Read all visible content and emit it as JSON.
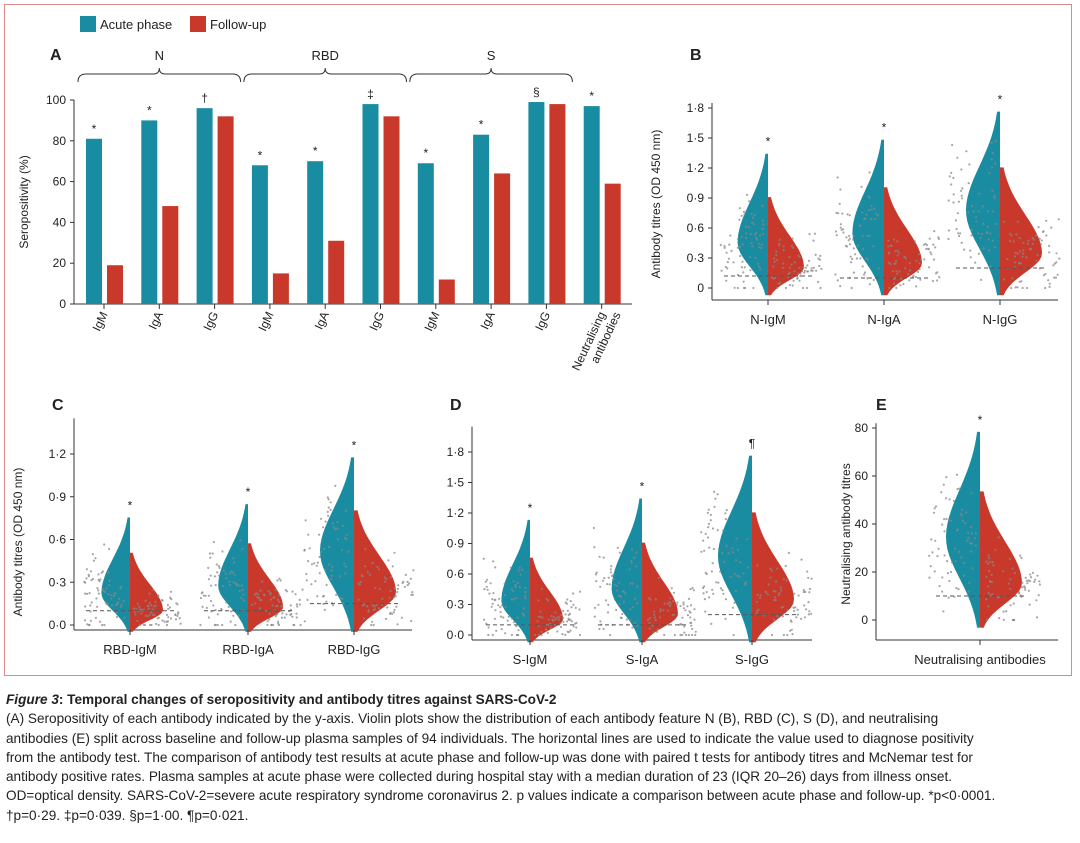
{
  "colors": {
    "acute": "#1a8ca1",
    "follow": "#c8392b",
    "frame": "#d98a8a"
  },
  "legend": [
    {
      "label": "Acute phase",
      "color": "#1a8ca1"
    },
    {
      "label": "Follow-up",
      "color": "#c8392b"
    }
  ],
  "caption": {
    "fig_label": "Figure 3",
    "title": ": Temporal changes of seropositivity and antibody titres against SARS-CoV-2",
    "lines": [
      "(A) Seropositivity of each antibody indicated by the y-axis. Violin plots show the distribution of each antibody feature N (B), RBD (C), S (D), and neutralising",
      "antibodies (E) split across baseline and follow-up plasma samples of 94 individuals. The horizontal lines are used to indicate the value used to diagnose positivity",
      "from the antibody test. The comparison of antibody test results at acute phase and follow-up was done with paired t tests for antibody titres and McNemar test for",
      "antibody positive rates. Plasma samples at acute phase were collected during hospital stay with a median duration of 23 (IQR 20–26) days from illness onset.",
      "OD=optical density. SARS-CoV-2=severe acute respiratory syndrome coronavirus 2. p values indicate a comparison between acute phase and follow-up. *p<0·0001.",
      "†p=0·29. ‡p=0·039. §p=1·00. ¶p=0·021."
    ]
  },
  "chart_data": [
    {
      "panel": "A",
      "type": "bar",
      "ylabel": "Seropositivity (%)",
      "ylim": [
        0,
        100
      ],
      "yticks": [
        "0",
        "20",
        "40",
        "60",
        "80",
        "100"
      ],
      "groups": [
        {
          "label": "N",
          "span": [
            0,
            2
          ]
        },
        {
          "label": "RBD",
          "span": [
            3,
            5
          ]
        },
        {
          "label": "S",
          "span": [
            6,
            8
          ]
        }
      ],
      "categories": [
        "IgM",
        "IgA",
        "IgG",
        "IgM",
        "IgA",
        "IgG",
        "IgM",
        "IgA",
        "IgG",
        "Neutralising antibodies"
      ],
      "series": [
        {
          "name": "Acute phase",
          "values": [
            81,
            90,
            96,
            68,
            70,
            98,
            69,
            83,
            99,
            97
          ]
        },
        {
          "name": "Follow-up",
          "values": [
            19,
            48,
            92,
            15,
            31,
            92,
            12,
            64,
            98,
            59
          ]
        }
      ],
      "markers": [
        "*",
        "*",
        "†",
        "*",
        "*",
        "‡",
        "*",
        "*",
        "§",
        "*"
      ]
    },
    {
      "panel": "B",
      "type": "violin",
      "ylabel": "Antibody titres (OD 450 nm)",
      "ylim": [
        -0.15,
        1.85
      ],
      "yticks": [
        "0",
        "0·3",
        "0·6",
        "0·9",
        "1·2",
        "1·5",
        "1·8"
      ],
      "categories": [
        "N-IgM",
        "N-IgA",
        "N-IgG"
      ],
      "markers": [
        "*",
        "*",
        "*"
      ],
      "cutoffs": [
        0.12,
        0.1,
        0.2
      ]
    },
    {
      "panel": "C",
      "type": "violin",
      "ylabel": "Antibody titres (OD 450 nm)",
      "ylim": [
        -0.1,
        1.45
      ],
      "yticks": [
        "0·0",
        "0·3",
        "0·6",
        "0·9",
        "1·2"
      ],
      "categories": [
        "RBD-IgM",
        "RBD-IgA",
        "RBD-IgG"
      ],
      "markers": [
        "*",
        "*",
        "*"
      ],
      "cutoffs": [
        0.1,
        0.1,
        0.15
      ]
    },
    {
      "panel": "D",
      "type": "violin",
      "ylabel": "",
      "ylim": [
        -0.05,
        2.05
      ],
      "yticks": [
        "0·0",
        "0·3",
        "0·6",
        "0·9",
        "1·2",
        "1·5",
        "1·8"
      ],
      "categories": [
        "S-IgM",
        "S-IgA",
        "S-IgG"
      ],
      "markers": [
        "*",
        "*",
        "¶"
      ],
      "cutoffs": [
        0.1,
        0.1,
        0.2
      ]
    },
    {
      "panel": "E",
      "type": "violin",
      "ylabel": "Neutralising antibody titres",
      "ylim": [
        -5,
        82
      ],
      "yticks": [
        "0",
        "20",
        "40",
        "60",
        "80"
      ],
      "categories": [
        "Neutralising antibodies"
      ],
      "markers": [
        "*"
      ],
      "cutoffs": [
        10
      ]
    }
  ]
}
